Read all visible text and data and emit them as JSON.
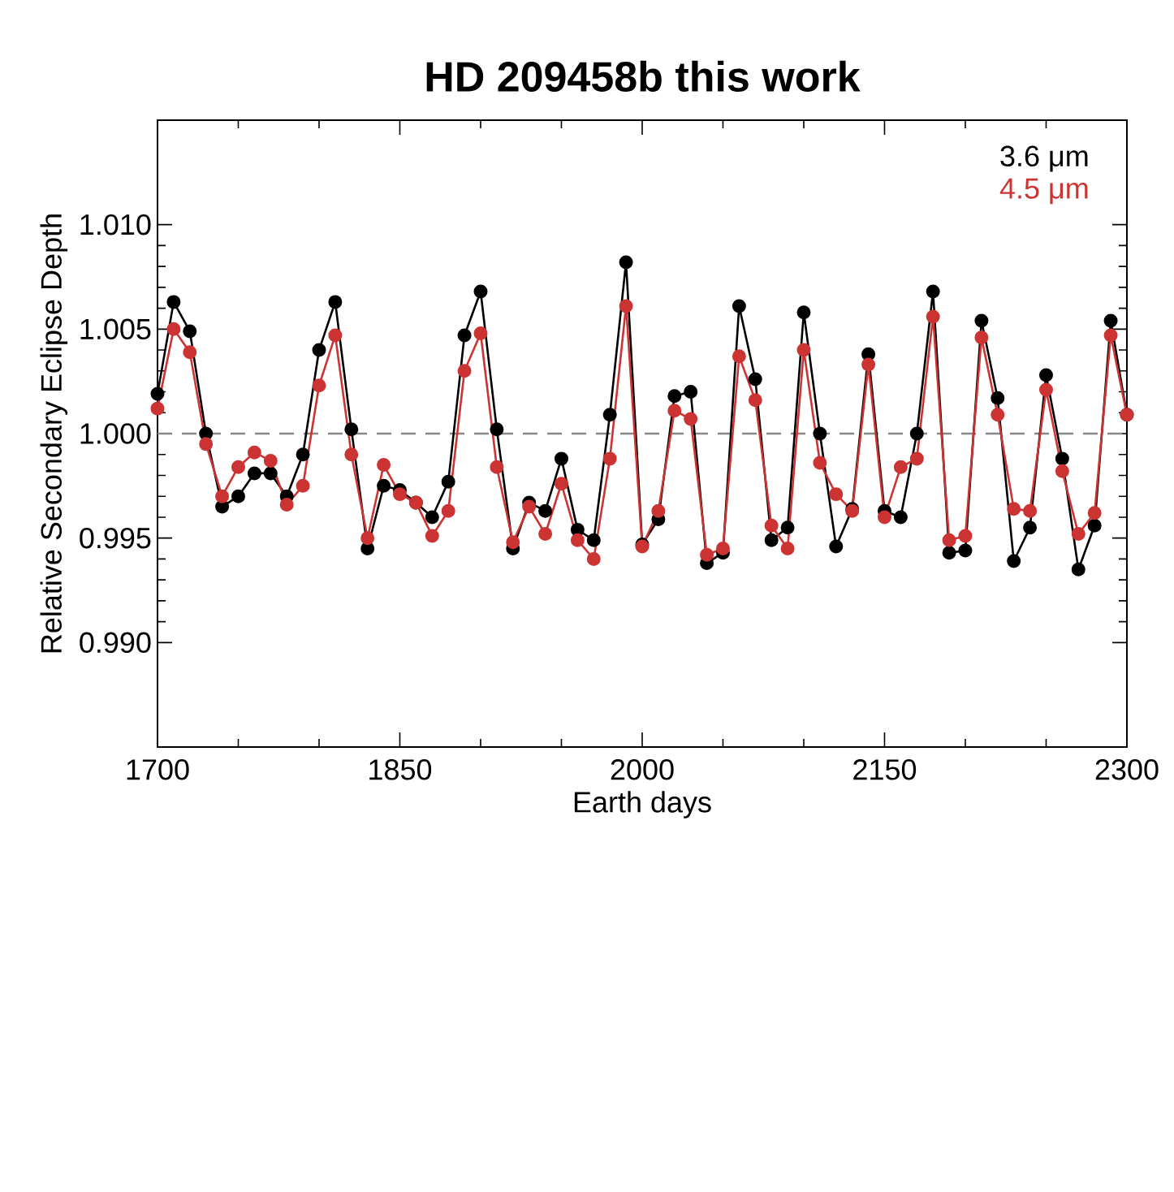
{
  "chart_data": {
    "type": "line",
    "title": "HD 209458b this work",
    "xlabel": "Earth days",
    "ylabel": "Relative Secondary Eclipse Depth",
    "x": [
      1700,
      1710,
      1720,
      1730,
      1740,
      1750,
      1760,
      1770,
      1780,
      1790,
      1800,
      1810,
      1820,
      1830,
      1840,
      1850,
      1860,
      1870,
      1880,
      1890,
      1900,
      1910,
      1920,
      1930,
      1940,
      1950,
      1960,
      1970,
      1980,
      1990,
      2000,
      2010,
      2020,
      2030,
      2040,
      2050,
      2060,
      2070,
      2080,
      2090,
      2100,
      2110,
      2120,
      2130,
      2140,
      2150,
      2160,
      2170,
      2180,
      2190,
      2200,
      2210,
      2220,
      2230,
      2240,
      2250,
      2260,
      2270,
      2280,
      2290,
      2300
    ],
    "series": [
      {
        "name": "3.6 μm",
        "color": "#000000",
        "values": [
          1.0019,
          1.0063,
          1.0049,
          1.0,
          0.9965,
          0.997,
          0.9981,
          0.9981,
          0.997,
          0.999,
          1.004,
          1.0063,
          1.0002,
          0.9945,
          0.9975,
          0.9973,
          0.9967,
          0.996,
          0.9977,
          1.0047,
          1.0068,
          1.0002,
          0.9945,
          0.9967,
          0.9963,
          0.9988,
          0.9954,
          0.9949,
          1.0009,
          1.0082,
          0.9947,
          0.9959,
          1.0018,
          1.002,
          0.9938,
          0.9943,
          1.0061,
          1.0026,
          0.9949,
          0.9955,
          1.0058,
          1.0,
          0.9946,
          0.9964,
          1.0038,
          0.9963,
          0.996,
          1.0,
          1.0068,
          0.9943,
          0.9944,
          1.0054,
          1.0017,
          0.9939,
          0.9955,
          1.0028,
          0.9988,
          0.9935,
          0.9956,
          1.0054,
          1.0009
        ]
      },
      {
        "name": "4.5 μm",
        "color": "#cc3333",
        "values": [
          1.0012,
          1.005,
          1.0039,
          0.9995,
          0.997,
          0.9984,
          0.9991,
          0.9987,
          0.9966,
          0.9975,
          1.0023,
          1.0047,
          0.999,
          0.995,
          0.9985,
          0.9971,
          0.9967,
          0.9951,
          0.9963,
          1.003,
          1.0048,
          0.9984,
          0.9948,
          0.9965,
          0.9952,
          0.9976,
          0.9949,
          0.994,
          0.9988,
          1.0061,
          0.9946,
          0.9963,
          1.0011,
          1.0007,
          0.9942,
          0.9945,
          1.0037,
          1.0016,
          0.9956,
          0.9945,
          1.004,
          0.9986,
          0.9971,
          0.9963,
          1.0033,
          0.996,
          0.9984,
          0.9988,
          1.0056,
          0.9949,
          0.9951,
          1.0046,
          1.0009,
          0.9964,
          0.9963,
          1.0021,
          0.9982,
          0.9952,
          0.9962,
          1.0047,
          1.0009
        ]
      }
    ],
    "xlim": [
      1700,
      2300
    ],
    "xticks": [
      1700,
      1850,
      2000,
      2150,
      2300
    ],
    "ylim": [
      0.985,
      1.015
    ],
    "yticks": [
      {
        "value": 0.99,
        "label": "0.990"
      },
      {
        "value": 0.995,
        "label": "0.995"
      },
      {
        "value": 1.0,
        "label": "1.000"
      },
      {
        "value": 1.005,
        "label": "1.005"
      },
      {
        "value": 1.01,
        "label": "1.010"
      }
    ],
    "ref_lines": [
      {
        "axis": "y",
        "value": 1.0,
        "color": "#888888",
        "line_style": "dashed"
      }
    ],
    "marker": "circle",
    "line_style": "solid",
    "legend": "top right",
    "grid": false
  }
}
